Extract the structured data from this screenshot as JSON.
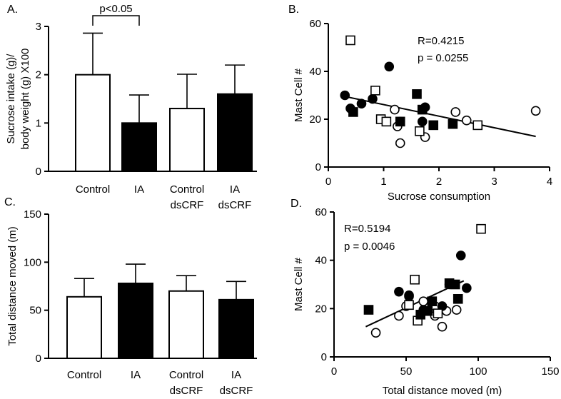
{
  "chart_data": [
    {
      "panel": "A.",
      "type": "bar",
      "title": "",
      "ylabel": [
        "Sucrose intake (g)/",
        "body weight (g) X100"
      ],
      "xlabel": "",
      "ylim": [
        0,
        3
      ],
      "yticks": [
        0,
        1,
        2,
        3
      ],
      "categories": [
        [
          "Control"
        ],
        [
          "IA"
        ],
        [
          "Control",
          "dsCRF"
        ],
        [
          "IA",
          "dsCRF"
        ]
      ],
      "values": [
        2.0,
        1.0,
        1.3,
        1.6
      ],
      "errors": [
        0.86,
        0.58,
        0.71,
        0.6
      ],
      "fills": [
        "#ffffff",
        "#000000",
        "#ffffff",
        "#000000"
      ],
      "annotation": {
        "text": "p<0.05",
        "from": 0,
        "to": 1
      }
    },
    {
      "panel": "B.",
      "type": "scatter",
      "xlabel": "Sucrose consumption",
      "ylabel": "Mast Cell #",
      "xlim": [
        0,
        4
      ],
      "ylim": [
        0,
        60
      ],
      "xticks": [
        0,
        1,
        2,
        3,
        4
      ],
      "yticks": [
        0,
        20,
        40,
        60
      ],
      "stats": [
        "R=0.4215",
        "p = 0.0255"
      ],
      "trendline": {
        "x": [
          0.3,
          3.75
        ],
        "y": [
          29.5,
          12.8
        ]
      },
      "series": [
        {
          "name": "Control",
          "marker": "circle-open",
          "points": [
            [
              1.2,
              24
            ],
            [
              1.25,
              17
            ],
            [
              1.3,
              10
            ],
            [
              1.75,
              12.5
            ],
            [
              2.3,
              23
            ],
            [
              2.5,
              19.5
            ],
            [
              3.75,
              23.5
            ]
          ]
        },
        {
          "name": "IA",
          "marker": "circle-filled",
          "points": [
            [
              0.3,
              30
            ],
            [
              0.4,
              24.5
            ],
            [
              0.6,
              26.5
            ],
            [
              0.8,
              28.5
            ],
            [
              1.1,
              42
            ],
            [
              1.3,
              19
            ],
            [
              1.7,
              19
            ],
            [
              1.75,
              25
            ]
          ]
        },
        {
          "name": "Control dsCRF",
          "marker": "square-open",
          "points": [
            [
              0.4,
              53
            ],
            [
              0.85,
              32
            ],
            [
              0.95,
              20
            ],
            [
              1.05,
              19
            ],
            [
              1.65,
              15
            ],
            [
              2.7,
              17.5
            ]
          ]
        },
        {
          "name": "IA dsCRF",
          "marker": "square-filled",
          "points": [
            [
              0.45,
              23
            ],
            [
              1.3,
              19
            ],
            [
              1.6,
              30.5
            ],
            [
              1.7,
              24
            ],
            [
              1.9,
              17.5
            ],
            [
              2.25,
              18
            ]
          ]
        }
      ]
    },
    {
      "panel": "C.",
      "type": "bar",
      "title": "",
      "ylabel": [
        "Total distance moved (m)"
      ],
      "xlabel": "",
      "ylim": [
        0,
        150
      ],
      "yticks": [
        0,
        50,
        100,
        150
      ],
      "categories": [
        [
          "Control"
        ],
        [
          "IA"
        ],
        [
          "Control",
          "dsCRF"
        ],
        [
          "IA",
          "dsCRF"
        ]
      ],
      "values": [
        64,
        78,
        70,
        61
      ],
      "errors": [
        19,
        20,
        16,
        19
      ],
      "fills": [
        "#ffffff",
        "#000000",
        "#ffffff",
        "#000000"
      ]
    },
    {
      "panel": "D.",
      "type": "scatter",
      "xlabel": "Total distance moved (m)",
      "ylabel": "Mast Cell #",
      "xlim": [
        0,
        150
      ],
      "ylim": [
        0,
        60
      ],
      "xticks": [
        0,
        50,
        100,
        150
      ],
      "yticks": [
        0,
        20,
        40,
        60
      ],
      "stats": [
        "R=0.5194",
        "p = 0.0046"
      ],
      "trendline": {
        "x": [
          22,
          90
        ],
        "y": [
          12.5,
          31.5
        ]
      },
      "series": [
        {
          "name": "Control",
          "marker": "circle-open",
          "points": [
            [
              29,
              10
            ],
            [
              45,
              17
            ],
            [
              50,
              21
            ],
            [
              52,
              25
            ],
            [
              62,
              23
            ],
            [
              70,
              21
            ],
            [
              75,
              12.5
            ],
            [
              78,
              19
            ],
            [
              85,
              19.5
            ],
            [
              70,
              17
            ]
          ]
        },
        {
          "name": "IA",
          "marker": "circle-filled",
          "points": [
            [
              45,
              27
            ],
            [
              52,
              25.5
            ],
            [
              62,
              19.5
            ],
            [
              80,
              30
            ],
            [
              88,
              42
            ],
            [
              92,
              28.5
            ],
            [
              75,
              21
            ]
          ]
        },
        {
          "name": "Control dsCRF",
          "marker": "square-open",
          "points": [
            [
              52,
              21.5
            ],
            [
              56,
              32
            ],
            [
              58,
              15
            ],
            [
              72,
              18
            ],
            [
              102,
              53
            ]
          ]
        },
        {
          "name": "IA dsCRF",
          "marker": "square-filled",
          "points": [
            [
              24,
              19.5
            ],
            [
              60,
              17.5
            ],
            [
              65,
              19
            ],
            [
              68,
              23
            ],
            [
              80,
              30.5
            ],
            [
              84,
              30
            ],
            [
              86,
              24
            ]
          ]
        }
      ]
    }
  ]
}
